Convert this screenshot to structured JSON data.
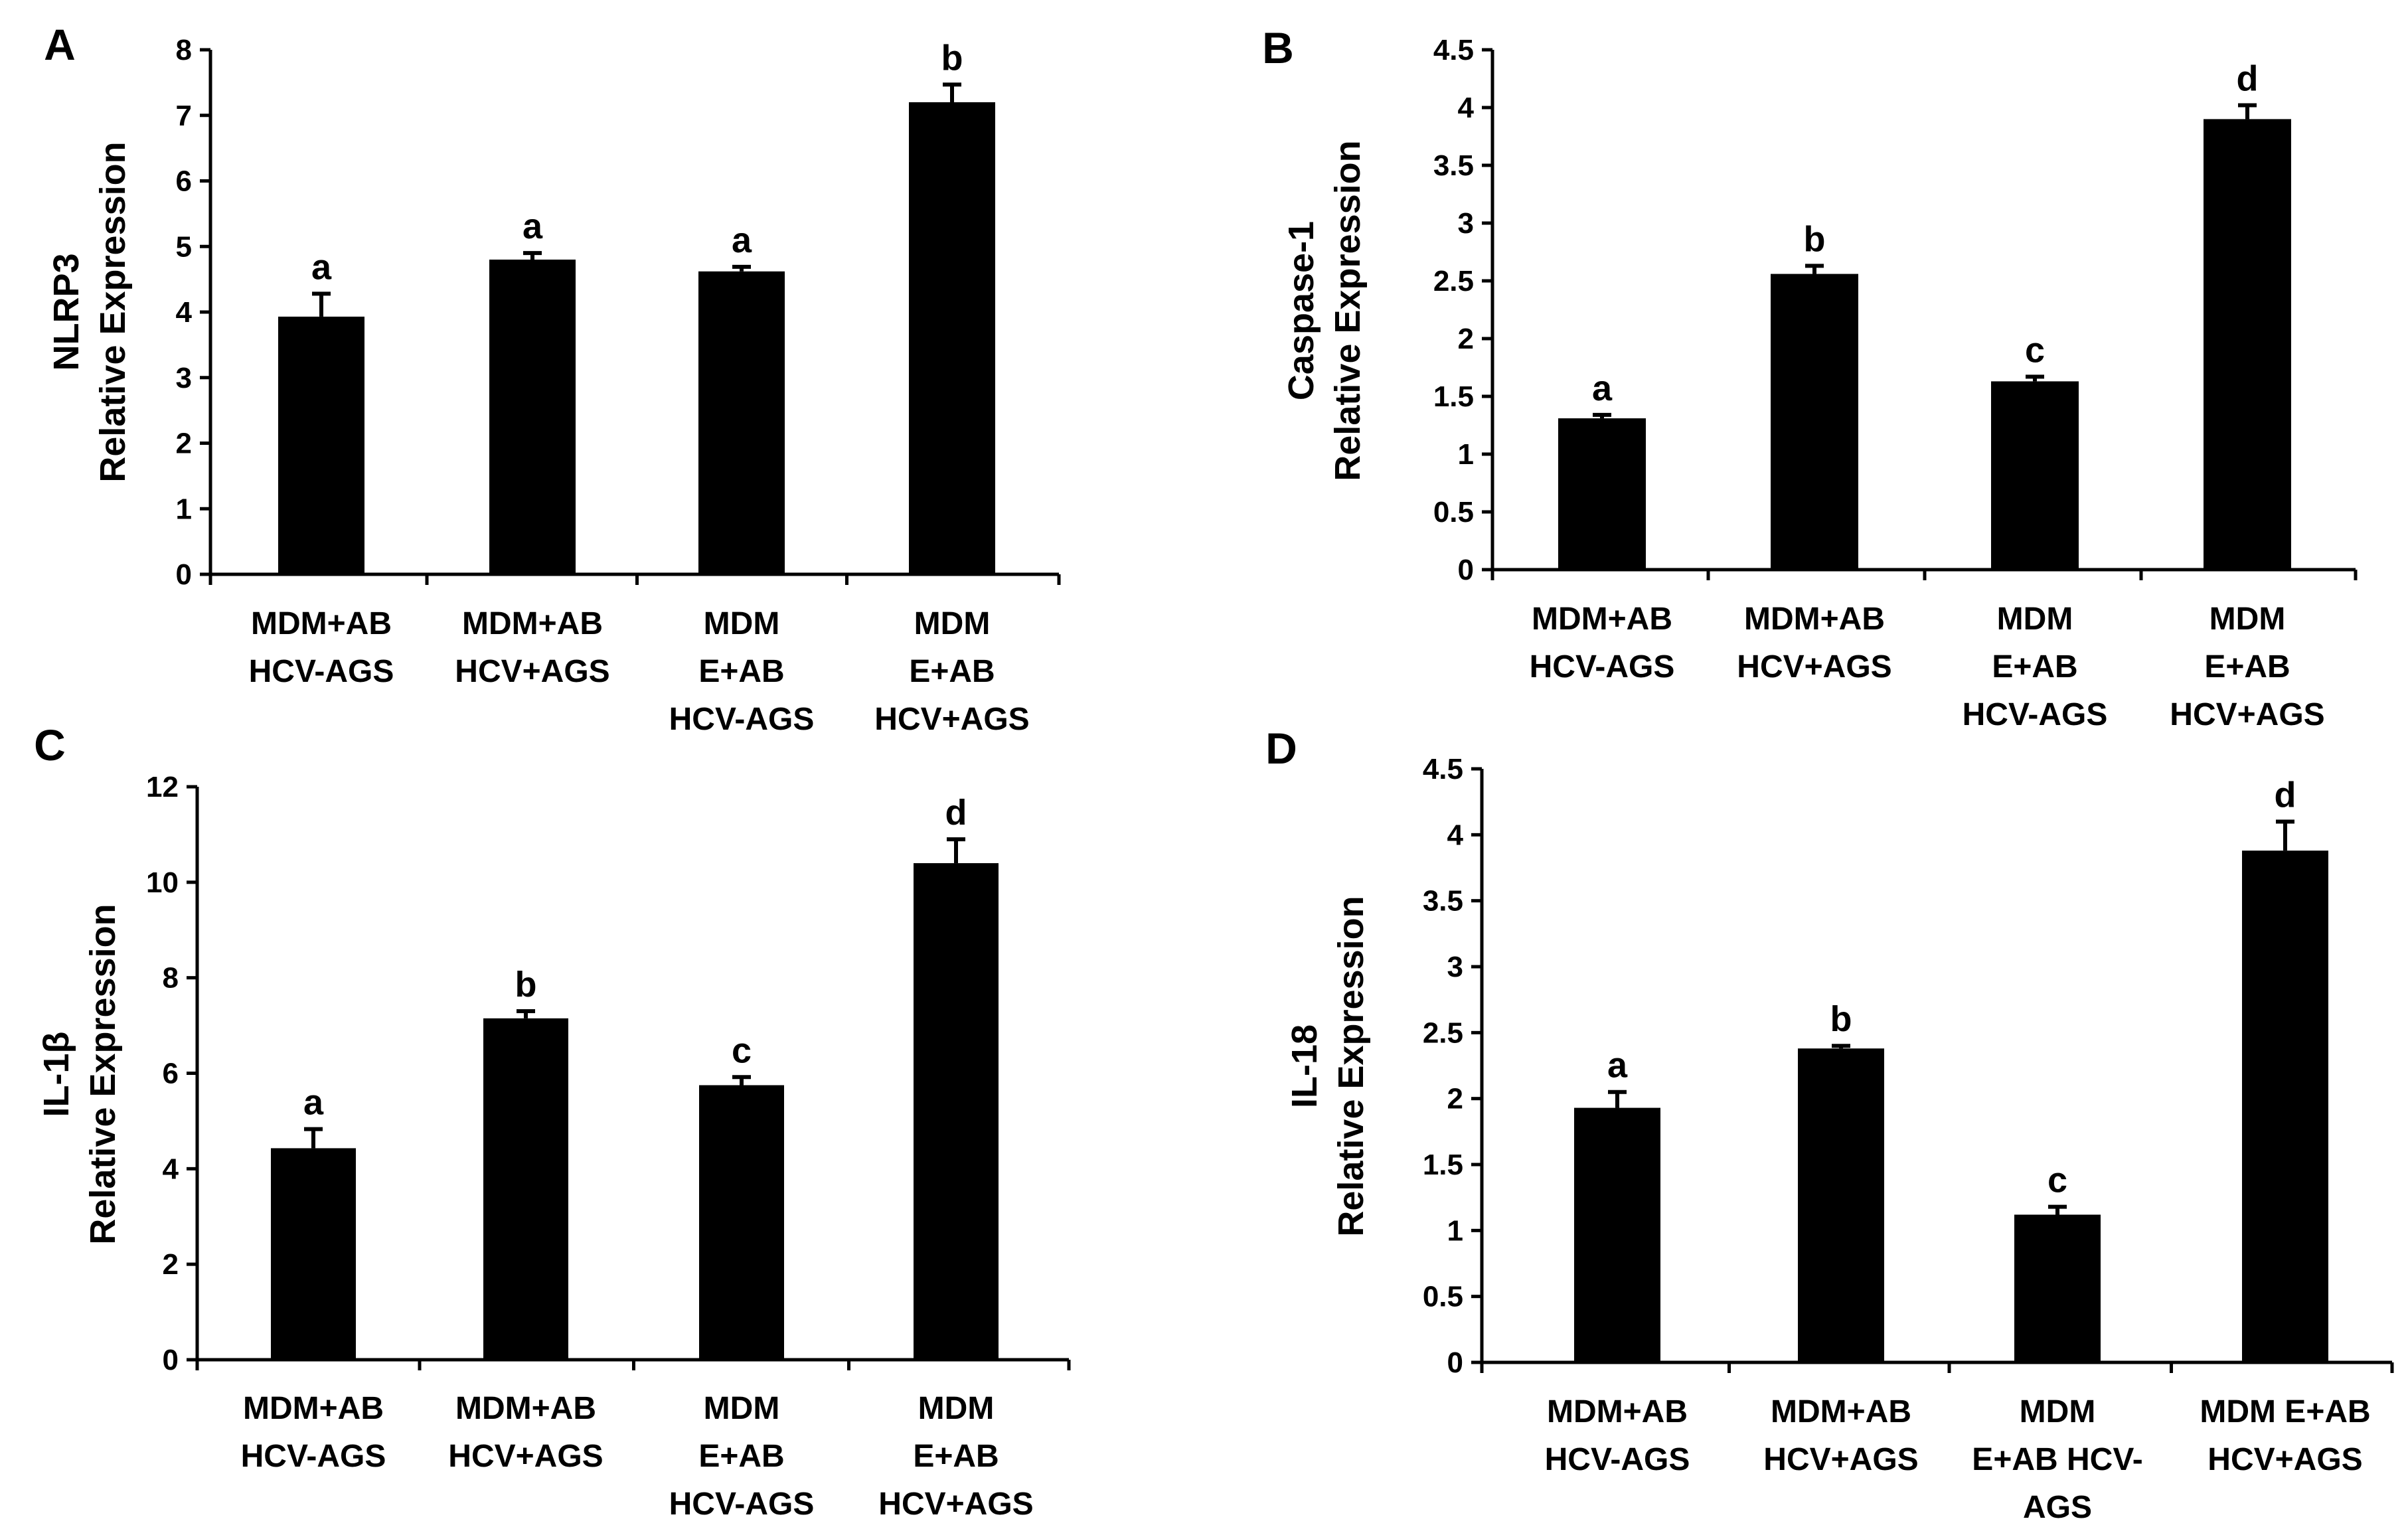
{
  "colors": {
    "bar": "#000000",
    "axis": "#000000",
    "background": "#ffffff"
  },
  "chart_data": [
    {
      "panel": "A",
      "type": "bar",
      "ylabel_lines": [
        "NLRP3",
        "Relative  Expression"
      ],
      "ylim": [
        0,
        8
      ],
      "yticks": [
        0,
        1,
        2,
        3,
        4,
        5,
        6,
        7,
        8
      ],
      "ytick_labels": [
        "0",
        "1",
        "2",
        "3",
        "4",
        "5",
        "6",
        "7",
        "8"
      ],
      "categories": [
        [
          "MDM+AB",
          "HCV-AGS"
        ],
        [
          "MDM+AB",
          "HCV+AGS"
        ],
        [
          "MDM",
          "E+AB",
          "HCV-AGS"
        ],
        [
          "MDM",
          "E+AB",
          "HCV+AGS"
        ]
      ],
      "values": [
        3.93,
        4.8,
        4.62,
        7.2
      ],
      "errors": [
        0.35,
        0.1,
        0.07,
        0.27
      ],
      "significance": [
        "a",
        "a",
        "a",
        "b"
      ]
    },
    {
      "panel": "B",
      "type": "bar",
      "ylabel_lines": [
        "Caspase-1",
        "Relative  Expression"
      ],
      "ylim": [
        0,
        4.5
      ],
      "yticks": [
        0,
        0.5,
        1,
        1.5,
        2,
        2.5,
        3,
        3.5,
        4,
        4.5
      ],
      "ytick_labels": [
        "0",
        "0.5",
        "1",
        "1.5",
        "2",
        "2.5",
        "3",
        "3.5",
        "4",
        "4.5"
      ],
      "categories": [
        [
          "MDM+AB",
          "HCV-AGS"
        ],
        [
          "MDM+AB",
          "HCV+AGS"
        ],
        [
          "MDM",
          "E+AB",
          "HCV-AGS"
        ],
        [
          "MDM",
          "E+AB",
          "HCV+AGS"
        ]
      ],
      "values": [
        1.31,
        2.56,
        1.63,
        3.9
      ],
      "errors": [
        0.03,
        0.07,
        0.04,
        0.12
      ],
      "significance": [
        "a",
        "b",
        "c",
        "d"
      ]
    },
    {
      "panel": "C",
      "type": "bar",
      "ylabel_lines": [
        "IL-1β",
        "Relative  Expression"
      ],
      "ylim": [
        0,
        12
      ],
      "yticks": [
        0,
        2,
        4,
        6,
        8,
        10,
        12
      ],
      "ytick_labels": [
        "0",
        "2",
        "4",
        "6",
        "8",
        "10",
        "12"
      ],
      "categories": [
        [
          "MDM+AB",
          "HCV-AGS"
        ],
        [
          "MDM+AB",
          "HCV+AGS"
        ],
        [
          "MDM",
          "E+AB",
          "HCV-AGS"
        ],
        [
          "MDM",
          "E+AB",
          "HCV+AGS"
        ]
      ],
      "values": [
        4.43,
        7.15,
        5.75,
        10.4
      ],
      "errors": [
        0.4,
        0.15,
        0.17,
        0.5
      ],
      "significance": [
        "a",
        "b",
        "c",
        "d"
      ]
    },
    {
      "panel": "D",
      "type": "bar",
      "ylabel_lines": [
        "IL-18",
        "Relative  Expression"
      ],
      "ylim": [
        0,
        4.5
      ],
      "yticks": [
        0,
        0.5,
        1,
        1.5,
        2,
        2.5,
        3,
        3.5,
        4,
        4.5
      ],
      "ytick_labels": [
        "0",
        "0.5",
        "1",
        "1.5",
        "2",
        "2.5",
        "3",
        "3.5",
        "4",
        "4.5"
      ],
      "categories": [
        [
          "MDM+AB",
          "HCV-AGS"
        ],
        [
          "MDM+AB",
          "HCV+AGS"
        ],
        [
          "MDM",
          "E+AB HCV-",
          "AGS"
        ],
        [
          "MDM E+AB",
          "HCV+AGS"
        ]
      ],
      "values": [
        1.93,
        2.38,
        1.12,
        3.88
      ],
      "errors": [
        0.12,
        0.02,
        0.06,
        0.22
      ],
      "significance": [
        "a",
        "b",
        "c",
        "d"
      ]
    }
  ]
}
